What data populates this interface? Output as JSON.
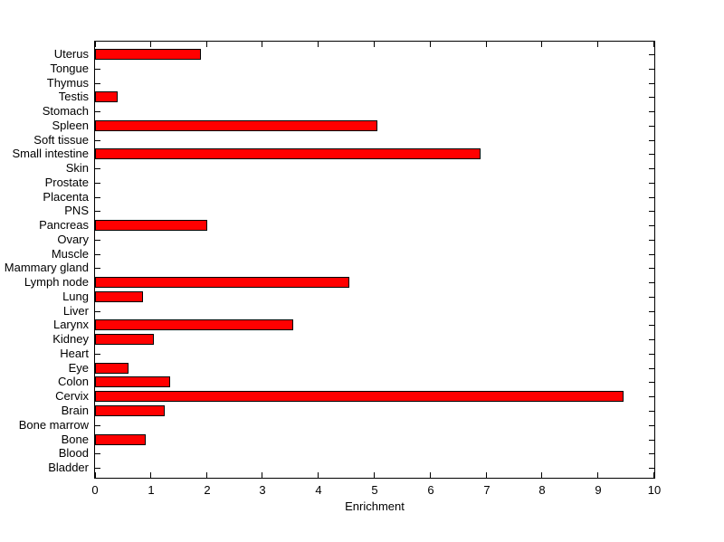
{
  "figure": {
    "background": "#ffffff",
    "axis_color": "#000000",
    "text_color": "#000000"
  },
  "chart_data": {
    "type": "bar",
    "orientation": "horizontal",
    "title": "",
    "xlabel": "Enrichment",
    "ylabel": "",
    "xlim": [
      0,
      10
    ],
    "x_ticks": [
      "0",
      "1",
      "2",
      "3",
      "4",
      "5",
      "6",
      "7",
      "8",
      "9",
      "10"
    ],
    "grid": false,
    "legend": "none",
    "bar_color": "#ff0000",
    "bar_edge_color": "#000000",
    "categories_top_to_bottom": [
      "Uterus",
      "Tongue",
      "Thymus",
      "Testis",
      "Stomach",
      "Spleen",
      "Soft tissue",
      "Small intestine",
      "Skin",
      "Prostate",
      "Placenta",
      "PNS",
      "Pancreas",
      "Ovary",
      "Muscle",
      "Mammary gland",
      "Lymph node",
      "Lung",
      "Liver",
      "Larynx",
      "Kidney",
      "Heart",
      "Eye",
      "Colon",
      "Cervix",
      "Brain",
      "Bone marrow",
      "Bone",
      "Blood",
      "Bladder"
    ],
    "values_top_to_bottom": [
      1.9,
      0,
      0,
      0.4,
      0,
      5.05,
      0,
      6.9,
      0,
      0,
      0,
      0,
      2.0,
      0,
      0,
      0,
      4.55,
      0.85,
      0,
      3.55,
      1.05,
      0,
      0.6,
      1.35,
      9.45,
      1.25,
      0,
      0.9,
      0,
      0
    ]
  }
}
